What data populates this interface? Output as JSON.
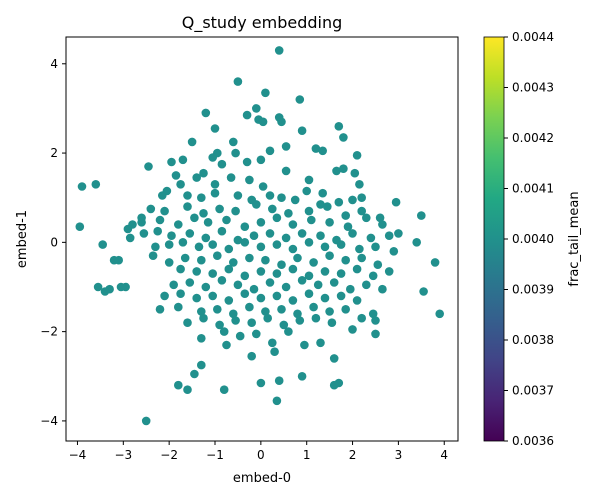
{
  "chart_data": {
    "type": "scatter",
    "title": "Q_study embedding",
    "xlabel": "embed-0",
    "ylabel": "embed-1",
    "xlim": [
      -4.25,
      4.3
    ],
    "ylim": [
      -4.45,
      4.6
    ],
    "xticks": [
      -4,
      -3,
      -2,
      -1,
      0,
      1,
      2,
      3,
      4
    ],
    "yticks": [
      -4,
      -2,
      0,
      2,
      4
    ],
    "grid": false,
    "point_color": "#21908d",
    "colorbar": {
      "label": "frac_tail_mean",
      "range": [
        0.0036,
        0.0044
      ],
      "ticks": [
        "0.0036",
        "0.0037",
        "0.0038",
        "0.0039",
        "0.0040",
        "0.0041",
        "0.0042",
        "0.0043",
        "0.0044"
      ],
      "colormap": "viridis"
    },
    "points_note": "all points share the same frac_tail_mean value (~0.0040)",
    "x": [
      0.4,
      0.85,
      0.1,
      -0.5,
      -0.1,
      -0.05,
      0.4,
      0.45,
      0.9,
      1.7,
      1.8,
      0.05,
      -0.3,
      -1.2,
      -1.5,
      -1.0,
      -0.6,
      -0.95,
      -0.55,
      -1.05,
      -0.85,
      -0.3,
      0.0,
      0.2,
      0.55,
      1.2,
      1.35,
      1.65,
      1.8,
      2.1,
      -1.95,
      -1.7,
      -1.85,
      -1.4,
      -1.25,
      -1.0,
      -0.65,
      -0.25,
      0.05,
      0.55,
      1.05,
      1.35,
      2.15,
      2.05,
      -3.9,
      -3.6,
      -2.45,
      -2.05,
      -1.75,
      -2.15,
      -1.6,
      -1.3,
      -1.0,
      -0.5,
      -0.2,
      0.2,
      0.45,
      0.75,
      1.0,
      1.3,
      1.7,
      2.0,
      2.2,
      -2.4,
      -2.6,
      -2.1,
      -1.6,
      -1.25,
      -0.9,
      -0.55,
      -0.1,
      0.25,
      0.6,
      1.05,
      1.45,
      1.85,
      2.2,
      2.6,
      2.95,
      3.5,
      -2.8,
      -2.9,
      -2.6,
      -2.2,
      -1.8,
      -1.45,
      -1.15,
      -0.75,
      -0.35,
      0.0,
      0.35,
      0.7,
      1.1,
      1.5,
      1.9,
      2.3,
      2.65,
      3.0,
      -3.95,
      -2.85,
      -2.55,
      -2.25,
      -1.95,
      -1.55,
      -1.2,
      -0.85,
      -0.5,
      -0.15,
      0.2,
      0.55,
      0.9,
      1.3,
      1.65,
      2.0,
      2.4,
      2.8,
      3.4,
      -3.45,
      -3.1,
      -2.3,
      -2.0,
      -1.7,
      -1.35,
      -1.05,
      -0.7,
      -0.35,
      0.0,
      0.35,
      0.7,
      1.05,
      1.4,
      1.75,
      2.15,
      2.5,
      2.9,
      -3.55,
      -3.2,
      -2.35,
      -2.0,
      -1.65,
      -1.3,
      -0.95,
      -0.6,
      -0.25,
      0.1,
      0.45,
      0.8,
      1.15,
      1.5,
      1.85,
      2.2,
      2.55,
      3.8,
      -3.3,
      -2.95,
      -1.75,
      -1.4,
      -1.05,
      -0.7,
      -0.35,
      0.0,
      0.35,
      0.7,
      1.05,
      1.4,
      1.75,
      2.1,
      2.45,
      2.8,
      -3.4,
      -3.05,
      -1.9,
      -1.55,
      -1.2,
      -0.85,
      -0.5,
      -0.15,
      0.2,
      0.55,
      0.9,
      1.25,
      1.6,
      1.95,
      2.3,
      2.65,
      3.55,
      -2.1,
      -1.75,
      -1.4,
      -1.05,
      -0.7,
      -0.35,
      0.0,
      0.35,
      0.7,
      1.05,
      1.4,
      1.75,
      2.1,
      2.45,
      3.9,
      -2.2,
      -1.8,
      -1.3,
      -0.95,
      -0.6,
      -0.25,
      0.1,
      0.45,
      0.8,
      1.15,
      1.5,
      1.85,
      2.2,
      2.5,
      -1.6,
      -1.25,
      -0.9,
      -0.55,
      -0.2,
      0.15,
      0.5,
      0.85,
      1.2,
      1.55,
      2.0,
      2.5,
      -1.3,
      -0.8,
      -0.45,
      -0.1,
      0.25,
      0.6,
      0.95,
      1.3,
      1.6,
      -1.3,
      -0.75,
      -0.2,
      0.3,
      0.9,
      1.7,
      -1.8,
      -1.6,
      -1.45,
      -0.8,
      0.0,
      0.4,
      1.6,
      -2.5,
      0.35
    ],
    "y": [
      4.3,
      3.2,
      3.35,
      3.6,
      3.0,
      2.75,
      2.8,
      2.7,
      2.5,
      2.6,
      2.35,
      2.7,
      2.85,
      2.9,
      2.25,
      2.55,
      2.25,
      2.0,
      2.0,
      1.9,
      1.75,
      1.8,
      1.85,
      2.05,
      2.15,
      2.1,
      2.05,
      1.6,
      1.65,
      1.95,
      1.8,
      1.85,
      1.5,
      1.45,
      1.55,
      1.3,
      1.45,
      1.4,
      1.25,
      1.6,
      1.4,
      1.1,
      1.3,
      1.55,
      1.25,
      1.3,
      1.7,
      1.15,
      1.3,
      1.05,
      1.05,
      1.0,
      1.1,
      1.05,
      0.95,
      1.05,
      1.0,
      0.95,
      1.15,
      0.85,
      0.9,
      0.95,
      1.0,
      0.75,
      0.55,
      0.7,
      0.8,
      0.65,
      0.75,
      0.7,
      0.85,
      0.75,
      0.65,
      0.7,
      0.8,
      0.6,
      0.7,
      0.55,
      0.9,
      0.6,
      0.4,
      0.3,
      0.45,
      0.5,
      0.4,
      0.55,
      0.45,
      0.5,
      0.35,
      0.45,
      0.55,
      0.4,
      0.5,
      0.45,
      0.35,
      0.55,
      0.4,
      0.2,
      0.35,
      0.1,
      0.2,
      0.25,
      0.15,
      0.2,
      0.1,
      0.25,
      0.05,
      0.15,
      0.2,
      0.1,
      0.2,
      0.15,
      0.05,
      0.2,
      0.1,
      0.15,
      0.0,
      -0.05,
      -0.4,
      -0.1,
      -0.05,
      0.0,
      -0.1,
      -0.05,
      -0.15,
      0.0,
      -0.1,
      -0.05,
      -0.15,
      0.0,
      -0.1,
      -0.05,
      -0.15,
      -0.1,
      -0.2,
      -1.0,
      -0.4,
      -0.3,
      -0.45,
      -0.35,
      -0.4,
      -0.3,
      -0.45,
      -0.35,
      -0.4,
      -0.5,
      -0.35,
      -0.45,
      -0.3,
      -0.4,
      -0.35,
      -0.5,
      -0.45,
      -1.05,
      -1.0,
      -0.6,
      -0.65,
      -0.7,
      -0.6,
      -0.75,
      -0.65,
      -0.7,
      -0.6,
      -0.75,
      -0.65,
      -0.7,
      -0.6,
      -0.75,
      -0.65,
      -1.1,
      -1.0,
      -0.95,
      -0.9,
      -1.0,
      -0.85,
      -0.95,
      -1.05,
      -0.9,
      -1.0,
      -0.85,
      -0.95,
      -0.9,
      -1.05,
      -0.95,
      -1.05,
      -1.1,
      -1.2,
      -1.15,
      -1.25,
      -1.2,
      -1.3,
      -1.15,
      -1.25,
      -1.2,
      -1.3,
      -1.15,
      -1.25,
      -1.2,
      -1.3,
      -1.6,
      -1.6,
      -1.5,
      -1.45,
      -1.55,
      -1.5,
      -1.6,
      -1.45,
      -1.55,
      -1.5,
      -1.6,
      -1.45,
      -1.55,
      -1.5,
      -1.7,
      -1.75,
      -1.8,
      -1.7,
      -1.85,
      -1.75,
      -1.8,
      -1.7,
      -1.85,
      -1.75,
      -1.7,
      -1.8,
      -1.95,
      -2.05,
      -2.15,
      -2.0,
      -2.1,
      -2.05,
      -2.25,
      -2.0,
      -2.3,
      -2.25,
      -2.6,
      -2.75,
      -2.3,
      -2.55,
      -2.45,
      -3.0,
      -3.15,
      -3.2,
      -3.3,
      -2.95,
      -3.3,
      -3.15,
      -3.1,
      -3.2,
      -4.0,
      -3.55
    ]
  }
}
